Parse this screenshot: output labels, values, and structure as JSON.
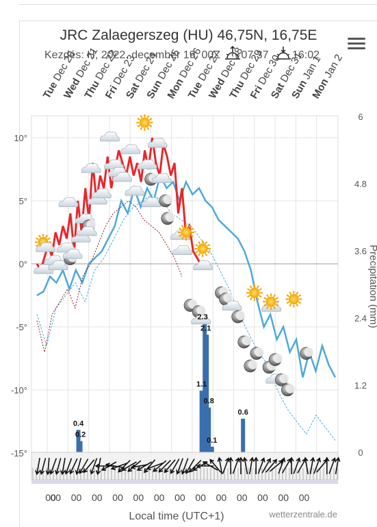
{
  "header": {
    "title": "JRC Zalaegerszeg (HU) 46,75N, 16,75E",
    "start_text": "Kezdés: H, 2022. december 19. 00Z",
    "sunrise": "07:37",
    "sunset": "16:02"
  },
  "menu_icon": "hamburger-menu-icon",
  "credit": "wetterzentrale.de",
  "colors": {
    "temp_max": "#e8262a",
    "temp_min": "#4ba9dc",
    "dewpoint": "#8b1a1a",
    "precip": "#3a6fae",
    "axis": "#999999"
  },
  "chart_data": {
    "type": "line",
    "days": [
      {
        "weekday": "Tue",
        "date": "Dec 20"
      },
      {
        "weekday": "Wed",
        "date": "Dec 21"
      },
      {
        "weekday": "Thu",
        "date": "Dec 22"
      },
      {
        "weekday": "Fri",
        "date": "Dec 23"
      },
      {
        "weekday": "Sat",
        "date": "Dec 24"
      },
      {
        "weekday": "Sun",
        "date": "Dec 25"
      },
      {
        "weekday": "Mon",
        "date": "Dec 26"
      },
      {
        "weekday": "Tue",
        "date": "Dec 27"
      },
      {
        "weekday": "Wed",
        "date": "Dec 28"
      },
      {
        "weekday": "Thu",
        "date": "Dec 29"
      },
      {
        "weekday": "Fri",
        "date": "Dec 30"
      },
      {
        "weekday": "Sat",
        "date": "Dec 31"
      },
      {
        "weekday": "Sun",
        "date": "Jan 1"
      },
      {
        "weekday": "Mon",
        "date": "Jan 2"
      }
    ],
    "y_left": {
      "ticks": [
        "10°",
        "5°",
        "0°",
        "-5°",
        "-10°",
        "-15°"
      ],
      "values": [
        10,
        5,
        0,
        -5,
        -10,
        -15
      ],
      "range": [
        -15,
        12
      ]
    },
    "y_right": {
      "label": "Precipitation (mm)",
      "ticks": [
        "6",
        "4.8",
        "3.6",
        "2.4",
        "1.2",
        "0"
      ],
      "values": [
        6,
        4.8,
        3.6,
        2.4,
        1.2,
        0
      ]
    },
    "x_label": "Local time (UTC+1)",
    "x_tick_label": "00",
    "temp_max": [
      0,
      -0.5,
      0.5,
      1.5,
      0.6,
      2.5,
      1.5,
      3,
      2,
      4,
      1,
      5,
      2.5,
      6,
      3.5,
      8,
      5,
      7,
      6,
      8.5,
      6,
      7.5,
      9,
      8,
      7,
      8.5,
      7,
      8,
      6.5,
      9,
      7.5,
      10,
      8,
      7,
      9.5,
      8.5,
      7,
      8,
      4,
      6,
      2.5,
      3,
      1,
      0.5,
      0,
      0.5,
      -1
    ],
    "temp_min": [
      -2.5,
      -2.2,
      -1,
      -1.5,
      -0.5,
      -2,
      -0.5,
      -1.5,
      0,
      0.5,
      1,
      2,
      3,
      5,
      4,
      6,
      4.5,
      6,
      5,
      7,
      6,
      6.5,
      5,
      6.5,
      5.5,
      6,
      5,
      4.5,
      3.5,
      3,
      2.5,
      2,
      1,
      -0.5,
      -3,
      -5,
      -4,
      -6,
      -5,
      -7,
      -6,
      -9,
      -7,
      -8.5,
      -6.5,
      -8,
      -9
    ],
    "dewpoint": [
      -4,
      -6.5,
      -3.5,
      -2.5,
      -1.5,
      -3,
      -0.5,
      0.5,
      2,
      3.5,
      4.5,
      5,
      5.5,
      5,
      4,
      3.5,
      3,
      2,
      1,
      -0.5,
      -2,
      -4,
      -5.5,
      -7,
      -8,
      -10,
      -11.5,
      -12.5,
      -13.5,
      -12,
      -13,
      -14
    ],
    "precip_bars": [
      {
        "x": 2.0,
        "mm": 0.4
      },
      {
        "x": 2.1,
        "mm": 0.2
      },
      {
        "x": 7.95,
        "mm": 1.1
      },
      {
        "x": 8.1,
        "mm": 2.3
      },
      {
        "x": 8.2,
        "mm": 2.1
      },
      {
        "x": 8.3,
        "mm": 0.8
      },
      {
        "x": 8.45,
        "mm": 0.1
      },
      {
        "x": 9.95,
        "mm": 0.6
      }
    ],
    "precip_labels": [
      {
        "text": "0.4",
        "x": 2.0,
        "mm": 0.4
      },
      {
        "text": "0.2",
        "x": 2.1,
        "mm": 0.2
      },
      {
        "text": "2.3",
        "x": 8.0,
        "mm": 2.3
      },
      {
        "text": "2.1",
        "x": 8.15,
        "mm": 2.1
      },
      {
        "text": "1.1",
        "x": 7.95,
        "mm": 1.1
      },
      {
        "text": "0.8",
        "x": 8.3,
        "mm": 0.8
      },
      {
        "text": "0.1",
        "x": 8.45,
        "mm": 0.1
      },
      {
        "text": "0.6",
        "x": 9.95,
        "mm": 0.6
      }
    ],
    "weather_icons": [
      {
        "icon": "sun-cloud",
        "x": 0.3,
        "t": 1.5
      },
      {
        "icon": "cloud",
        "x": 0.3,
        "t": -0.5
      },
      {
        "icon": "cloud",
        "x": 0.8,
        "t": 0.2
      },
      {
        "icon": "cloud",
        "x": 1.0,
        "t": -0.2
      },
      {
        "icon": "cloud",
        "x": 1.4,
        "t": 1.2
      },
      {
        "icon": "moon",
        "x": 1.6,
        "t": 0.4
      },
      {
        "icon": "cloud",
        "x": 1.7,
        "t": 0.7
      },
      {
        "icon": "cloud",
        "x": 1.5,
        "t": 4.8
      },
      {
        "icon": "cloud",
        "x": 2.1,
        "t": 2.0
      },
      {
        "icon": "cloud",
        "x": 2.3,
        "t": 3.5
      },
      {
        "icon": "moon",
        "x": 2.5,
        "t": 3.0
      },
      {
        "icon": "cloud",
        "x": 2.4,
        "t": 2.5
      },
      {
        "icon": "cloud",
        "x": 2.6,
        "t": 7.5
      },
      {
        "icon": "cloud",
        "x": 2.9,
        "t": 5.0
      },
      {
        "icon": "cloud",
        "x": 3.1,
        "t": 5.5
      },
      {
        "icon": "cloud",
        "x": 3.5,
        "t": 10.0
      },
      {
        "icon": "cloud",
        "x": 3.7,
        "t": 7.8
      },
      {
        "icon": "cloud",
        "x": 3.9,
        "t": 7.2
      },
      {
        "icon": "cloud",
        "x": 4.1,
        "t": 6.8
      },
      {
        "icon": "cloud",
        "x": 4.5,
        "t": 9.0
      },
      {
        "icon": "cloud",
        "x": 4.7,
        "t": 5.7
      },
      {
        "icon": "sun",
        "x": 5.2,
        "t": 11.2
      },
      {
        "icon": "cloud",
        "x": 5.3,
        "t": 7.8
      },
      {
        "icon": "moon",
        "x": 5.5,
        "t": 6.7
      },
      {
        "icon": "cloud",
        "x": 5.5,
        "t": 4.8
      },
      {
        "icon": "cloud",
        "x": 5.8,
        "t": 9.5
      },
      {
        "icon": "cloud",
        "x": 6.0,
        "t": 6.7
      },
      {
        "icon": "moon",
        "x": 6.2,
        "t": 5.0
      },
      {
        "icon": "moon",
        "x": 6.3,
        "t": 3.6
      },
      {
        "icon": "cloud",
        "x": 6.9,
        "t": 2.2
      },
      {
        "icon": "sun",
        "x": 7.2,
        "t": 2.5
      },
      {
        "icon": "cloud",
        "x": 7.0,
        "t": 1.0
      },
      {
        "icon": "sun",
        "x": 8.0,
        "t": 1.2
      },
      {
        "icon": "cloud",
        "x": 8.0,
        "t": -0.2
      },
      {
        "icon": "moon",
        "x": 7.4,
        "t": -3.3
      },
      {
        "icon": "moon",
        "x": 7.8,
        "t": -3.8
      },
      {
        "icon": "cloud",
        "x": 7.9,
        "t": -4.5
      },
      {
        "icon": "moon",
        "x": 8.9,
        "t": -2.3
      },
      {
        "icon": "moon",
        "x": 9.1,
        "t": -2.8
      },
      {
        "icon": "cloud",
        "x": 9.4,
        "t": -3.4
      },
      {
        "icon": "moon",
        "x": 9.7,
        "t": -4.2
      },
      {
        "icon": "sun",
        "x": 10.5,
        "t": -2.3
      },
      {
        "icon": "moon",
        "x": 10.0,
        "t": -6.2
      },
      {
        "icon": "moon",
        "x": 10.3,
        "t": -8.1
      },
      {
        "icon": "moon",
        "x": 10.6,
        "t": -7.1
      },
      {
        "icon": "cloud",
        "x": 11.3,
        "t": -3.5
      },
      {
        "icon": "sun",
        "x": 11.3,
        "t": -3.0
      },
      {
        "icon": "moon",
        "x": 11.2,
        "t": -8.2
      },
      {
        "icon": "moon",
        "x": 11.5,
        "t": -7.6
      },
      {
        "icon": "cloud",
        "x": 11.5,
        "t": -9.2
      },
      {
        "icon": "moon",
        "x": 11.8,
        "t": -9.2
      },
      {
        "icon": "moon",
        "x": 12.1,
        "t": -10.0
      },
      {
        "icon": "sun",
        "x": 12.4,
        "t": -2.8
      },
      {
        "icon": "moon",
        "x": 13.0,
        "t": -7.1
      }
    ],
    "wind_dirs": [
      10,
      15,
      5,
      20,
      15,
      10,
      20,
      25,
      15,
      30,
      40,
      20,
      10,
      90,
      60,
      100,
      70,
      45,
      60,
      50,
      80,
      60,
      40,
      70,
      50,
      45,
      40,
      30,
      20,
      20,
      30,
      45,
      60,
      90,
      120,
      140,
      170,
      200,
      180,
      200,
      180,
      170,
      190,
      180,
      200,
      210,
      220,
      230,
      200,
      210,
      180,
      200,
      210,
      170,
      190,
      200,
      220,
      180,
      200,
      190
    ]
  }
}
